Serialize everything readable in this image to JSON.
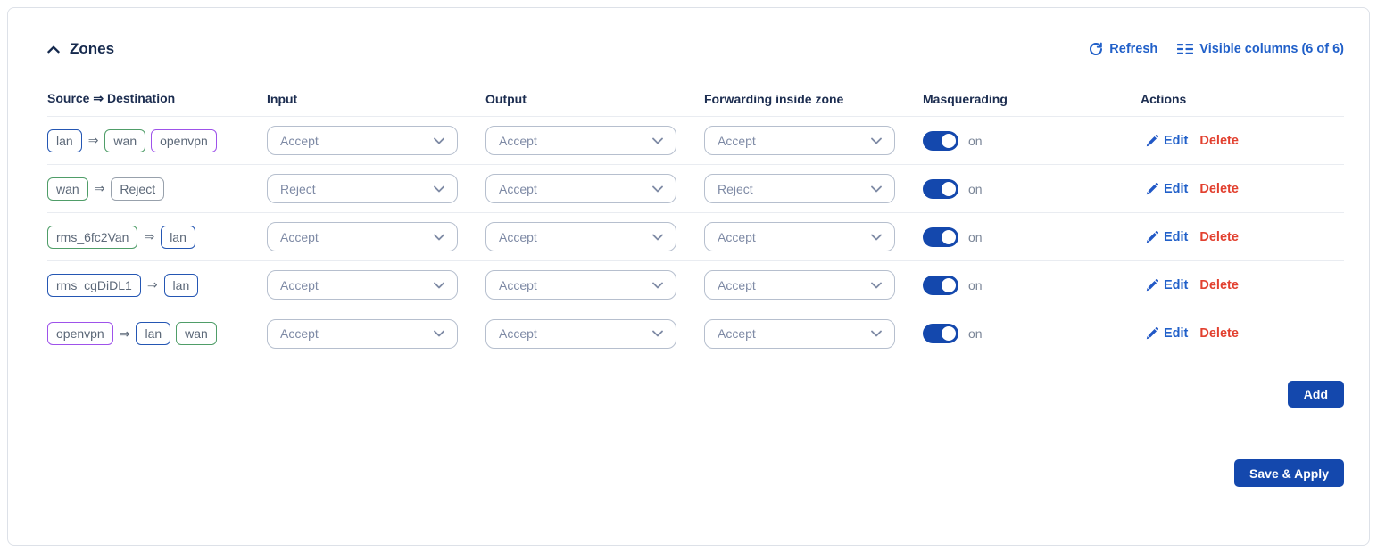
{
  "panel": {
    "title": "Zones"
  },
  "toolbar": {
    "refresh_label": "Refresh",
    "visible_columns_label": "Visible columns (6 of 6)"
  },
  "table": {
    "arrow": "⇒",
    "columns": [
      "Source ⇒ Destination",
      "Input",
      "Output",
      "Forwarding inside zone",
      "Masquerading",
      "Actions"
    ],
    "actions": {
      "edit_label": "Edit",
      "delete_label": "Delete"
    },
    "rows": [
      {
        "source": [
          {
            "label": "lan",
            "color": "blue"
          }
        ],
        "destination": [
          {
            "label": "wan",
            "color": "green"
          },
          {
            "label": "openvpn",
            "color": "purple"
          }
        ],
        "input": "Accept",
        "output": "Accept",
        "forwarding": "Accept",
        "masquerading": "on"
      },
      {
        "source": [
          {
            "label": "wan",
            "color": "green"
          }
        ],
        "destination": [
          {
            "label": "Reject",
            "color": "gray"
          }
        ],
        "input": "Reject",
        "output": "Accept",
        "forwarding": "Reject",
        "masquerading": "on"
      },
      {
        "source": [
          {
            "label": "rms_6fc2Van",
            "color": "green"
          }
        ],
        "destination": [
          {
            "label": "lan",
            "color": "blue"
          }
        ],
        "input": "Accept",
        "output": "Accept",
        "forwarding": "Accept",
        "masquerading": "on"
      },
      {
        "source": [
          {
            "label": "rms_cgDiDL1",
            "color": "blue"
          }
        ],
        "destination": [
          {
            "label": "lan",
            "color": "blue"
          }
        ],
        "input": "Accept",
        "output": "Accept",
        "forwarding": "Accept",
        "masquerading": "on"
      },
      {
        "source": [
          {
            "label": "openvpn",
            "color": "purple"
          }
        ],
        "destination": [
          {
            "label": "lan",
            "color": "blue"
          },
          {
            "label": "wan",
            "color": "green"
          }
        ],
        "input": "Accept",
        "output": "Accept",
        "forwarding": "Accept",
        "masquerading": "on"
      }
    ]
  },
  "buttons": {
    "add": "Add",
    "save_apply": "Save & Apply"
  },
  "colors": {
    "accent": "#1448ad",
    "link": "#2160c9",
    "delete": "#e2402f",
    "tag_blue": "#2456b3",
    "tag_green": "#4f9d68",
    "tag_purple": "#9e52ea",
    "tag_gray": "#98a1ac"
  }
}
